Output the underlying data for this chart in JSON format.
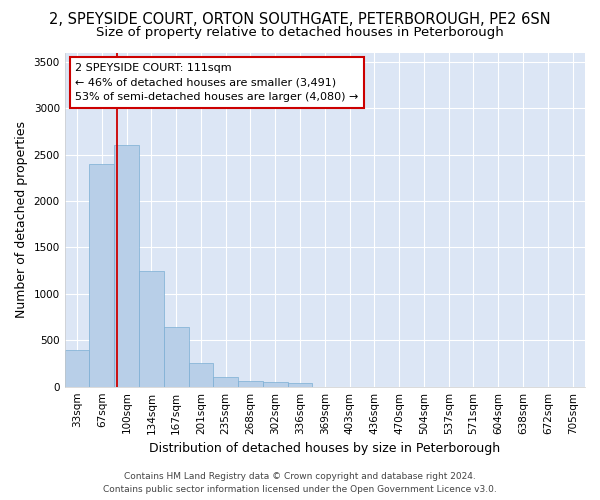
{
  "title_line1": "2, SPEYSIDE COURT, ORTON SOUTHGATE, PETERBOROUGH, PE2 6SN",
  "title_line2": "Size of property relative to detached houses in Peterborough",
  "xlabel": "Distribution of detached houses by size in Peterborough",
  "ylabel": "Number of detached properties",
  "categories": [
    "33sqm",
    "67sqm",
    "100sqm",
    "134sqm",
    "167sqm",
    "201sqm",
    "235sqm",
    "268sqm",
    "302sqm",
    "336sqm",
    "369sqm",
    "403sqm",
    "436sqm",
    "470sqm",
    "504sqm",
    "537sqm",
    "571sqm",
    "604sqm",
    "638sqm",
    "672sqm",
    "705sqm"
  ],
  "values": [
    390,
    2400,
    2600,
    1250,
    640,
    260,
    100,
    60,
    55,
    40,
    0,
    0,
    0,
    0,
    0,
    0,
    0,
    0,
    0,
    0,
    0
  ],
  "bar_color": "#b8cfe8",
  "bar_edgecolor": "#7aaed4",
  "annotation_text": "2 SPEYSIDE COURT: 111sqm\n← 46% of detached houses are smaller (3,491)\n53% of semi-detached houses are larger (4,080) →",
  "annotation_box_color": "#ffffff",
  "annotation_box_edgecolor": "#cc0000",
  "red_line_color": "#cc0000",
  "ylim": [
    0,
    3600
  ],
  "yticks": [
    0,
    500,
    1000,
    1500,
    2000,
    2500,
    3000,
    3500
  ],
  "background_color": "#dce6f5",
  "fig_background_color": "#ffffff",
  "grid_color": "#ffffff",
  "footer_line1": "Contains HM Land Registry data © Crown copyright and database right 2024.",
  "footer_line2": "Contains public sector information licensed under the Open Government Licence v3.0.",
  "title_fontsize": 10.5,
  "subtitle_fontsize": 9.5,
  "axis_label_fontsize": 9,
  "tick_fontsize": 7.5,
  "annotation_fontsize": 8,
  "footer_fontsize": 6.5
}
